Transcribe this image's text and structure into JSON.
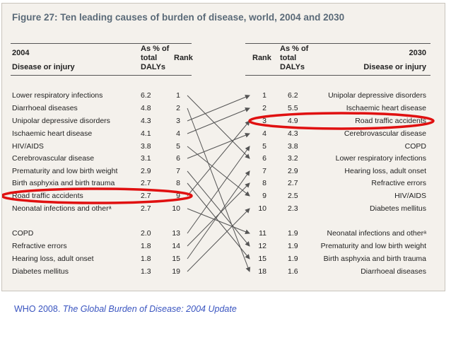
{
  "figure": {
    "title": "Figure 27: Ten leading causes of burden of disease, world, 2004 and 2030",
    "left_header": {
      "year": "2004",
      "label": "Disease or injury",
      "pct": [
        "As % of",
        "total",
        "DALYs"
      ],
      "rank": "Rank"
    },
    "right_header": {
      "year": "2030",
      "label": "Disease or injury",
      "pct": [
        "As % of",
        "total",
        "DALYs"
      ],
      "rank": "Rank"
    }
  },
  "chart_data": {
    "type": "table",
    "title": "Figure 27: Ten leading causes of burden of disease, world, 2004 and 2030",
    "rows_2004": [
      {
        "disease": "Lower respiratory infections",
        "pct": "6.2",
        "rank": "1"
      },
      {
        "disease": "Diarrhoeal diseases",
        "pct": "4.8",
        "rank": "2"
      },
      {
        "disease": "Unipolar depressive disorders",
        "pct": "4.3",
        "rank": "3"
      },
      {
        "disease": "Ischaemic heart disease",
        "pct": "4.1",
        "rank": "4"
      },
      {
        "disease": "HIV/AIDS",
        "pct": "3.8",
        "rank": "5"
      },
      {
        "disease": "Cerebrovascular disease",
        "pct": "3.1",
        "rank": "6"
      },
      {
        "disease": "Prematurity and low birth weight",
        "pct": "2.9",
        "rank": "7"
      },
      {
        "disease": "Birth asphyxia and birth trauma",
        "pct": "2.7",
        "rank": "8"
      },
      {
        "disease": "Road traffic accidents",
        "pct": "2.7",
        "rank": "9"
      },
      {
        "disease": "Neonatal infections and otherᵃ",
        "pct": "2.7",
        "rank": "10"
      },
      {
        "disease": "COPD",
        "pct": "2.0",
        "rank": "13"
      },
      {
        "disease": "Refractive errors",
        "pct": "1.8",
        "rank": "14"
      },
      {
        "disease": "Hearing loss, adult onset",
        "pct": "1.8",
        "rank": "15"
      },
      {
        "disease": "Diabetes mellitus",
        "pct": "1.3",
        "rank": "19"
      }
    ],
    "rows_2030": [
      {
        "rank": "1",
        "pct": "6.2",
        "disease": "Unipolar depressive disorders"
      },
      {
        "rank": "2",
        "pct": "5.5",
        "disease": "Ischaemic heart disease"
      },
      {
        "rank": "3",
        "pct": "4.9",
        "disease": "Road traffic accidents"
      },
      {
        "rank": "4",
        "pct": "4.3",
        "disease": "Cerebrovascular disease"
      },
      {
        "rank": "5",
        "pct": "3.8",
        "disease": "COPD"
      },
      {
        "rank": "6",
        "pct": "3.2",
        "disease": "Lower respiratory infections"
      },
      {
        "rank": "7",
        "pct": "2.9",
        "disease": "Hearing loss, adult onset"
      },
      {
        "rank": "8",
        "pct": "2.7",
        "disease": "Refractive errors"
      },
      {
        "rank": "9",
        "pct": "2.5",
        "disease": "HIV/AIDS"
      },
      {
        "rank": "10",
        "pct": "2.3",
        "disease": "Diabetes mellitus"
      },
      {
        "rank": "11",
        "pct": "1.9",
        "disease": "Neonatal infections and otherᵃ"
      },
      {
        "rank": "12",
        "pct": "1.9",
        "disease": "Prematurity and low birth weight"
      },
      {
        "rank": "15",
        "pct": "1.9",
        "disease": "Birth asphyxia and birth trauma"
      },
      {
        "rank": "18",
        "pct": "1.6",
        "disease": "Diarrhoeal diseases"
      }
    ],
    "links": [
      [
        0,
        5
      ],
      [
        1,
        13
      ],
      [
        2,
        0
      ],
      [
        3,
        1
      ],
      [
        4,
        8
      ],
      [
        5,
        3
      ],
      [
        6,
        11
      ],
      [
        7,
        12
      ],
      [
        8,
        2
      ],
      [
        9,
        10
      ],
      [
        10,
        4
      ],
      [
        11,
        7
      ],
      [
        12,
        6
      ],
      [
        13,
        9
      ]
    ],
    "highlights": {
      "row_2004": 8,
      "row_2030": 2,
      "color": "#e01010"
    }
  },
  "source": {
    "prefix": "WHO 2008. ",
    "title": "The Global Burden of Disease: 2004 Update"
  },
  "colors": {
    "title": "#5a6a78",
    "source": "#3a55c0",
    "panel": "#f4f1ec",
    "highlight": "#e01010"
  }
}
